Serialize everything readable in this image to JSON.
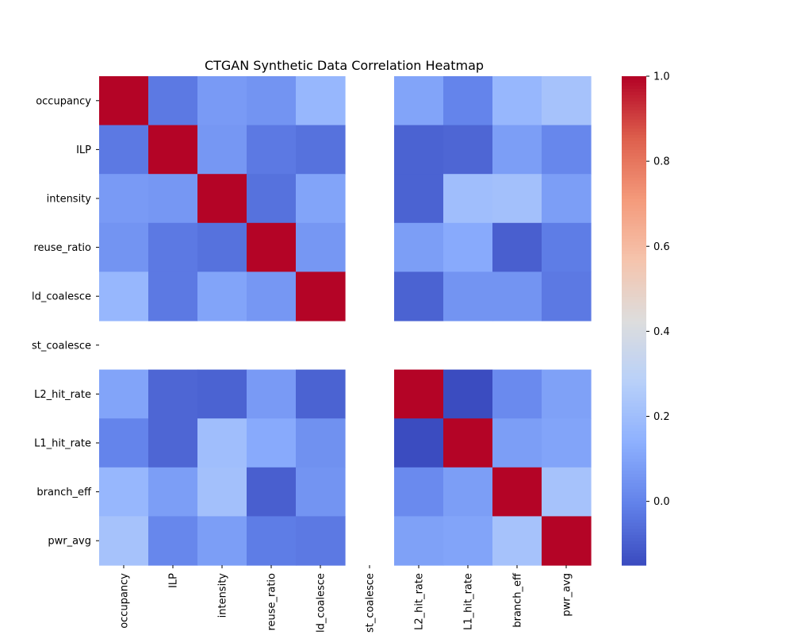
{
  "chart_data": {
    "type": "heatmap",
    "title": "CTGAN Synthetic Data Correlation Heatmap",
    "colormap": "coolwarm",
    "vmin": -0.15,
    "vmax": 1.0,
    "rows": [
      "occupancy",
      "ILP",
      "intensity",
      "reuse_ratio",
      "ld_coalesce",
      "st_coalesce",
      "L2_hit_rate",
      "L1_hit_rate",
      "branch_eff",
      "pwr_avg"
    ],
    "columns": [
      "occupancy",
      "ILP",
      "intensity",
      "reuse_ratio",
      "ld_coalesce",
      "st_coalesce",
      "L2_hit_rate",
      "L1_hit_rate",
      "branch_eff",
      "pwr_avg"
    ],
    "values": [
      [
        1.0,
        -0.03,
        0.07,
        0.05,
        0.17,
        null,
        0.1,
        0.0,
        0.17,
        0.22
      ],
      [
        -0.03,
        1.0,
        0.06,
        -0.03,
        -0.05,
        null,
        -0.09,
        -0.08,
        0.08,
        0.01
      ],
      [
        0.07,
        0.06,
        1.0,
        -0.05,
        0.1,
        null,
        -0.09,
        0.2,
        0.21,
        0.08
      ],
      [
        0.05,
        -0.03,
        -0.05,
        1.0,
        0.06,
        null,
        0.08,
        0.12,
        -0.1,
        -0.02
      ],
      [
        0.17,
        -0.03,
        0.1,
        0.06,
        1.0,
        null,
        -0.09,
        0.05,
        0.05,
        -0.03
      ],
      [
        null,
        null,
        null,
        null,
        null,
        null,
        null,
        null,
        null,
        null
      ],
      [
        0.1,
        -0.08,
        -0.09,
        0.07,
        -0.09,
        null,
        1.0,
        -0.15,
        0.02,
        0.09
      ],
      [
        0.0,
        -0.08,
        0.2,
        0.12,
        0.04,
        null,
        -0.15,
        1.0,
        0.08,
        0.1
      ],
      [
        0.17,
        0.08,
        0.21,
        -0.1,
        0.05,
        null,
        0.02,
        0.08,
        1.0,
        0.22
      ],
      [
        0.22,
        0.01,
        0.08,
        -0.02,
        -0.03,
        null,
        0.09,
        0.1,
        0.22,
        1.0
      ]
    ],
    "colorbar": {
      "ticks": [
        0.0,
        0.2,
        0.4,
        0.6,
        0.8,
        1.0
      ],
      "tick_labels": [
        "0.0",
        "0.2",
        "0.4",
        "0.6",
        "0.8",
        "1.0"
      ]
    }
  }
}
